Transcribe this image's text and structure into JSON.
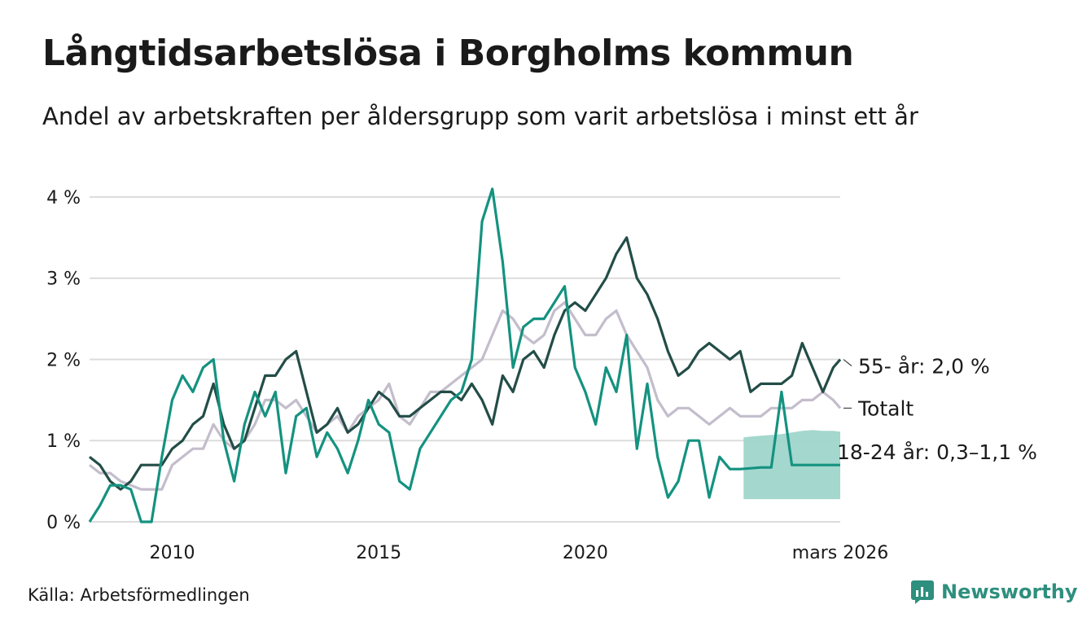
{
  "title": "Långtidsarbetslösa i Borgholms kommun",
  "subtitle": "Andel av arbetskraften per åldersgrupp som varit arbetslösa i minst ett år",
  "source": "Källa: Arbetsförmedlingen",
  "brand": {
    "name": "Newsworthy",
    "icon": "newsworthy-logo-icon"
  },
  "colors": {
    "s55": "#234d47",
    "total": "#c3bdcc",
    "s18": "#149280",
    "band": "#9fd5cb",
    "grid": "#dcdcdc"
  },
  "chart_data": {
    "type": "line",
    "xlabel": "",
    "ylabel": "",
    "xlim": [
      2008.0,
      2026.17
    ],
    "ylim": [
      0,
      4.2
    ],
    "yticks": [
      {
        "value": 0,
        "label": "0 %"
      },
      {
        "value": 1,
        "label": "1 %"
      },
      {
        "value": 2,
        "label": "2 %"
      },
      {
        "value": 3,
        "label": "3 %"
      },
      {
        "value": 4,
        "label": "4 %"
      }
    ],
    "xticks": [
      {
        "value": 2010,
        "label": "2010"
      },
      {
        "value": 2015,
        "label": "2015"
      },
      {
        "value": 2020,
        "label": "2020"
      },
      {
        "value": 2026.17,
        "label": "mars 2026"
      }
    ],
    "series": [
      {
        "name": "Totalt",
        "label": "Totalt",
        "color": "#c3bdcc",
        "x": [
          2008.0,
          2008.25,
          2008.5,
          2008.75,
          2009.0,
          2009.25,
          2009.5,
          2009.75,
          2010.0,
          2010.25,
          2010.5,
          2010.75,
          2011.0,
          2011.25,
          2011.5,
          2011.75,
          2012.0,
          2012.25,
          2012.5,
          2012.75,
          2013.0,
          2013.25,
          2013.5,
          2013.75,
          2014.0,
          2014.25,
          2014.5,
          2014.75,
          2015.0,
          2015.25,
          2015.5,
          2015.75,
          2016.0,
          2016.25,
          2016.5,
          2016.75,
          2017.0,
          2017.25,
          2017.5,
          2017.75,
          2018.0,
          2018.25,
          2018.5,
          2018.75,
          2019.0,
          2019.25,
          2019.5,
          2019.75,
          2020.0,
          2020.25,
          2020.5,
          2020.75,
          2021.0,
          2021.25,
          2021.5,
          2021.75,
          2022.0,
          2022.25,
          2022.5,
          2022.75,
          2023.0,
          2023.25,
          2023.5,
          2023.75,
          2024.0,
          2024.25,
          2024.5,
          2024.75,
          2025.0,
          2025.25,
          2025.5,
          2025.75,
          2026.0,
          2026.17
        ],
        "values": [
          0.7,
          0.6,
          0.6,
          0.5,
          0.45,
          0.4,
          0.4,
          0.4,
          0.7,
          0.8,
          0.9,
          0.9,
          1.2,
          1.0,
          0.9,
          1.0,
          1.2,
          1.5,
          1.5,
          1.4,
          1.5,
          1.3,
          1.1,
          1.2,
          1.3,
          1.1,
          1.3,
          1.4,
          1.5,
          1.7,
          1.3,
          1.2,
          1.4,
          1.6,
          1.6,
          1.7,
          1.8,
          1.9,
          2.0,
          2.3,
          2.6,
          2.5,
          2.3,
          2.2,
          2.3,
          2.6,
          2.7,
          2.5,
          2.3,
          2.3,
          2.5,
          2.6,
          2.3,
          2.1,
          1.9,
          1.5,
          1.3,
          1.4,
          1.4,
          1.3,
          1.2,
          1.3,
          1.4,
          1.3,
          1.3,
          1.3,
          1.4,
          1.4,
          1.4,
          1.5,
          1.5,
          1.6,
          1.5,
          1.4
        ]
      },
      {
        "name": "55- år",
        "label": "55- år: 2,0 %",
        "color": "#234d47",
        "x": [
          2008.0,
          2008.25,
          2008.5,
          2008.75,
          2009.0,
          2009.25,
          2009.5,
          2009.75,
          2010.0,
          2010.25,
          2010.5,
          2010.75,
          2011.0,
          2011.25,
          2011.5,
          2011.75,
          2012.0,
          2012.25,
          2012.5,
          2012.75,
          2013.0,
          2013.25,
          2013.5,
          2013.75,
          2014.0,
          2014.25,
          2014.5,
          2014.75,
          2015.0,
          2015.25,
          2015.5,
          2015.75,
          2016.0,
          2016.25,
          2016.5,
          2016.75,
          2017.0,
          2017.25,
          2017.5,
          2017.75,
          2018.0,
          2018.25,
          2018.5,
          2018.75,
          2019.0,
          2019.25,
          2019.5,
          2019.75,
          2020.0,
          2020.25,
          2020.5,
          2020.75,
          2021.0,
          2021.25,
          2021.5,
          2021.75,
          2022.0,
          2022.25,
          2022.5,
          2022.75,
          2023.0,
          2023.25,
          2023.5,
          2023.75,
          2024.0,
          2024.25,
          2024.5,
          2024.75,
          2025.0,
          2025.25,
          2025.5,
          2025.75,
          2026.0,
          2026.17
        ],
        "values": [
          0.8,
          0.7,
          0.5,
          0.4,
          0.5,
          0.7,
          0.7,
          0.7,
          0.9,
          1.0,
          1.2,
          1.3,
          1.7,
          1.2,
          0.9,
          1.0,
          1.4,
          1.8,
          1.8,
          2.0,
          2.1,
          1.6,
          1.1,
          1.2,
          1.4,
          1.1,
          1.2,
          1.4,
          1.6,
          1.5,
          1.3,
          1.3,
          1.4,
          1.5,
          1.6,
          1.6,
          1.5,
          1.7,
          1.5,
          1.2,
          1.8,
          1.6,
          2.0,
          2.1,
          1.9,
          2.3,
          2.6,
          2.7,
          2.6,
          2.8,
          3.0,
          3.3,
          3.5,
          3.0,
          2.8,
          2.5,
          2.1,
          1.8,
          1.9,
          2.1,
          2.2,
          2.1,
          2.0,
          2.1,
          1.6,
          1.7,
          1.7,
          1.7,
          1.8,
          2.2,
          1.9,
          1.6,
          1.9,
          2.0
        ]
      },
      {
        "name": "18-24 år",
        "label": "18-24 år: 0,3–1,1 %",
        "color": "#149280",
        "x": [
          2008.0,
          2008.25,
          2008.5,
          2008.75,
          2009.0,
          2009.25,
          2009.5,
          2009.75,
          2010.0,
          2010.25,
          2010.5,
          2010.75,
          2011.0,
          2011.25,
          2011.5,
          2011.75,
          2012.0,
          2012.25,
          2012.5,
          2012.75,
          2013.0,
          2013.25,
          2013.5,
          2013.75,
          2014.0,
          2014.25,
          2014.5,
          2014.75,
          2015.0,
          2015.25,
          2015.5,
          2015.75,
          2016.0,
          2016.25,
          2016.5,
          2016.75,
          2017.0,
          2017.25,
          2017.5,
          2017.75,
          2018.0,
          2018.25,
          2018.5,
          2018.75,
          2019.0,
          2019.25,
          2019.5,
          2019.75,
          2020.0,
          2020.25,
          2020.5,
          2020.75,
          2021.0,
          2021.25,
          2021.5,
          2021.75,
          2022.0,
          2022.25,
          2022.5,
          2022.75,
          2023.0,
          2023.25,
          2023.5,
          2023.75,
          2024.0,
          2024.25,
          2024.5,
          2024.75,
          2025.0,
          2025.25,
          2025.5,
          2025.75,
          2026.0,
          2026.17
        ],
        "values": [
          0.0,
          0.2,
          0.45,
          0.45,
          0.4,
          0.0,
          0.0,
          0.8,
          1.5,
          1.8,
          1.6,
          1.9,
          2.0,
          1.0,
          0.5,
          1.2,
          1.6,
          1.3,
          1.6,
          0.6,
          1.3,
          1.4,
          0.8,
          1.1,
          0.9,
          0.6,
          1.0,
          1.5,
          1.2,
          1.1,
          0.5,
          0.4,
          0.9,
          1.1,
          1.3,
          1.5,
          1.6,
          2.0,
          3.7,
          4.1,
          3.2,
          1.9,
          2.4,
          2.5,
          2.5,
          2.7,
          2.9,
          1.9,
          1.6,
          1.2,
          1.9,
          1.6,
          2.3,
          0.9,
          1.7,
          0.8,
          0.3,
          0.5,
          1.0,
          1.0,
          0.3,
          0.8,
          0.65,
          0.65,
          0.66,
          0.67,
          0.67,
          1.6,
          0.7,
          0.7,
          0.7,
          0.7,
          0.7,
          0.7
        ]
      }
    ],
    "forecast_band": {
      "name": "18-24 år intervall",
      "x": [
        2023.83,
        2024.0,
        2024.25,
        2024.5,
        2024.75,
        2025.0,
        2025.25,
        2025.5,
        2025.75,
        2026.0,
        2026.17
      ],
      "low": [
        0.28,
        0.28,
        0.28,
        0.28,
        0.28,
        0.28,
        0.28,
        0.28,
        0.28,
        0.28,
        0.28
      ],
      "high": [
        1.04,
        1.05,
        1.06,
        1.07,
        1.08,
        1.1,
        1.12,
        1.13,
        1.12,
        1.12,
        1.11
      ]
    }
  }
}
